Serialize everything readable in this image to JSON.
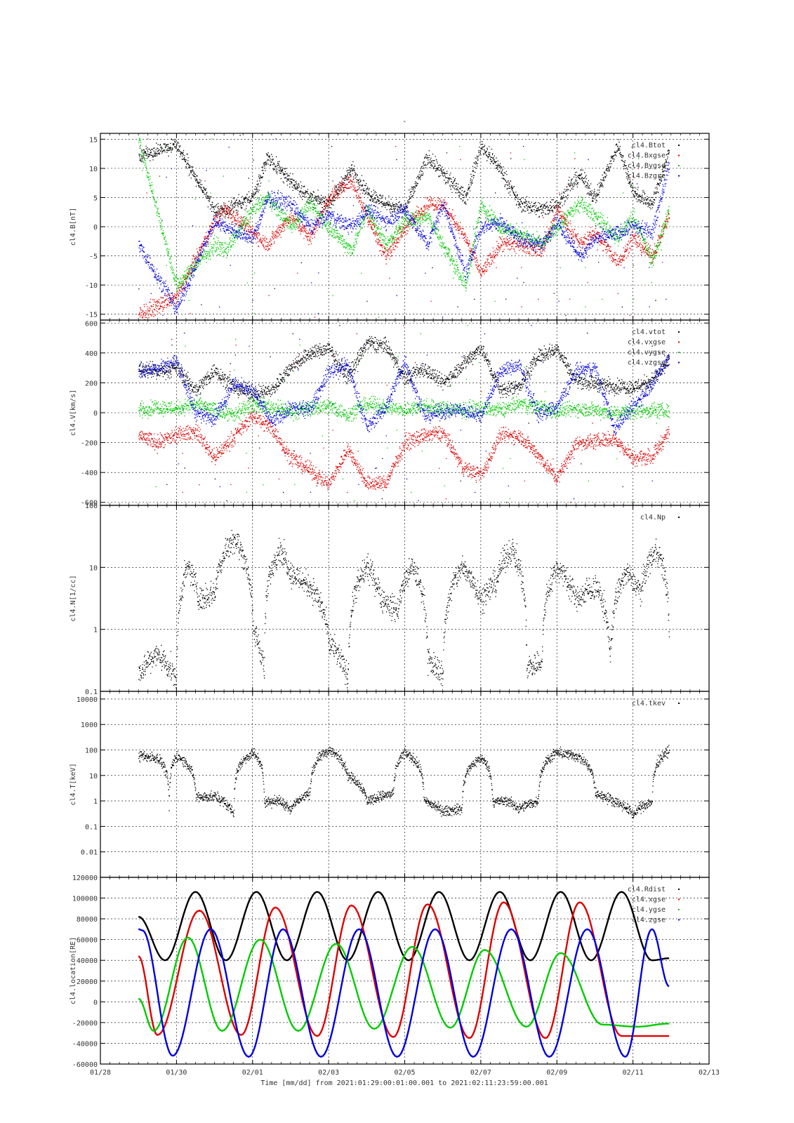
{
  "figure": {
    "title": "-",
    "xlabel": "Time [mm/dd]  from 2021:01:29:00:01:00.001  to  2021:02:11:23:59:00.001",
    "x_ticks": [
      "01/28",
      "01/30",
      "02/01",
      "02/03",
      "02/05",
      "02/07",
      "02/09",
      "02/11",
      "02/13"
    ],
    "x_range_days": [
      0,
      16
    ],
    "colors": {
      "black": "#000000",
      "red": "#e00000",
      "green": "#00cc00",
      "blue": "#0000e0"
    }
  },
  "chart_data": [
    {
      "type": "scatter",
      "ylabel": "cl4.B[nT]",
      "ylim": [
        -16,
        16
      ],
      "yscale": "linear",
      "y_ticks": [
        -15,
        -10,
        -5,
        0,
        5,
        10,
        15
      ],
      "legend": "top-right",
      "grid": true,
      "series": [
        {
          "name": "cl4.Btot",
          "color": "#000000"
        },
        {
          "name": "cl4.Bxgse",
          "color": "#e00000"
        },
        {
          "name": "cl4.Bygse",
          "color": "#00cc00"
        },
        {
          "name": "cl4.Bzgse",
          "color": "#0000e0"
        }
      ]
    },
    {
      "type": "scatter",
      "ylabel": "cl4.V[km/s]",
      "ylim": [
        -620,
        620
      ],
      "yscale": "linear",
      "y_ticks": [
        -600,
        -400,
        -200,
        0,
        200,
        400,
        600
      ],
      "legend": "top-right",
      "grid": true,
      "series": [
        {
          "name": "cl4.vtot",
          "color": "#000000"
        },
        {
          "name": "cl4.vxgse",
          "color": "#e00000"
        },
        {
          "name": "cl4.vygse",
          "color": "#00cc00"
        },
        {
          "name": "cl4.vzgse",
          "color": "#0000e0"
        }
      ]
    },
    {
      "type": "scatter",
      "ylabel": "cl4.N[1/cc]",
      "ylim": [
        0.1,
        100
      ],
      "yscale": "log",
      "y_ticks": [
        0.1,
        1,
        10,
        100
      ],
      "legend": "top-right",
      "grid": true,
      "series": [
        {
          "name": "cl4.Np",
          "color": "#000000"
        }
      ]
    },
    {
      "type": "scatter",
      "ylabel": "cl4.T[keV]",
      "ylim": [
        0.001,
        20000
      ],
      "yscale": "log",
      "y_ticks": [
        0.01,
        0.1,
        1,
        10,
        100,
        1000,
        10000
      ],
      "legend": "top-right",
      "grid": true,
      "series": [
        {
          "name": "cl4.tkev",
          "color": "#000000"
        }
      ]
    },
    {
      "type": "line",
      "ylabel": "cl4.location[RE]",
      "ylim": [
        -60000,
        120000
      ],
      "yscale": "linear",
      "y_ticks": [
        -60000,
        -40000,
        -20000,
        0,
        20000,
        40000,
        60000,
        80000,
        100000,
        120000
      ],
      "legend": "top-right",
      "grid": true,
      "series": [
        {
          "name": "cl4.Rdist",
          "color": "#000000",
          "x": [
            1.0,
            1.7,
            2.5,
            3.3,
            4.1,
            4.9,
            5.7,
            6.5,
            7.3,
            8.1,
            8.9,
            9.7,
            10.5,
            11.3,
            12.1,
            12.9,
            13.7,
            14.5,
            14.95
          ],
          "values": [
            82000,
            40000,
            106000,
            40000,
            106000,
            40000,
            106000,
            40000,
            106000,
            40000,
            106000,
            40000,
            106000,
            40000,
            106000,
            40000,
            106000,
            40000,
            42000
          ]
        },
        {
          "name": "cl4.xgse",
          "color": "#e00000",
          "x": [
            1.0,
            1.5,
            2.6,
            3.7,
            4.6,
            5.7,
            6.6,
            7.7,
            8.6,
            9.7,
            10.6,
            11.7,
            12.6,
            13.7,
            14.95
          ],
          "values": [
            44000,
            -32000,
            88000,
            -32000,
            91000,
            -33000,
            93000,
            -34000,
            94000,
            -35000,
            96000,
            -35000,
            96000,
            -33000,
            -33000
          ]
        },
        {
          "name": "cl4.ygse",
          "color": "#00cc00",
          "x": [
            1.0,
            1.4,
            2.3,
            3.2,
            4.2,
            5.2,
            6.2,
            7.2,
            8.2,
            9.2,
            10.1,
            11.2,
            12.1,
            13.2,
            14.1,
            14.95
          ],
          "values": [
            3000,
            -28000,
            62000,
            -28000,
            60000,
            -28000,
            56000,
            -26000,
            53000,
            -25000,
            50000,
            -24000,
            47000,
            -22000,
            -24000,
            -21000
          ]
        },
        {
          "name": "cl4.zgse",
          "color": "#0000e0",
          "x": [
            1.0,
            1.1,
            1.9,
            2.9,
            3.9,
            4.8,
            5.8,
            6.8,
            7.8,
            8.8,
            9.8,
            10.8,
            11.8,
            12.8,
            13.8,
            14.5,
            14.95
          ],
          "values": [
            70000,
            69000,
            -52000,
            70000,
            -53000,
            70000,
            -53000,
            70000,
            -53000,
            70000,
            -53000,
            70000,
            -53000,
            70000,
            -53000,
            70000,
            15000
          ]
        }
      ]
    }
  ]
}
